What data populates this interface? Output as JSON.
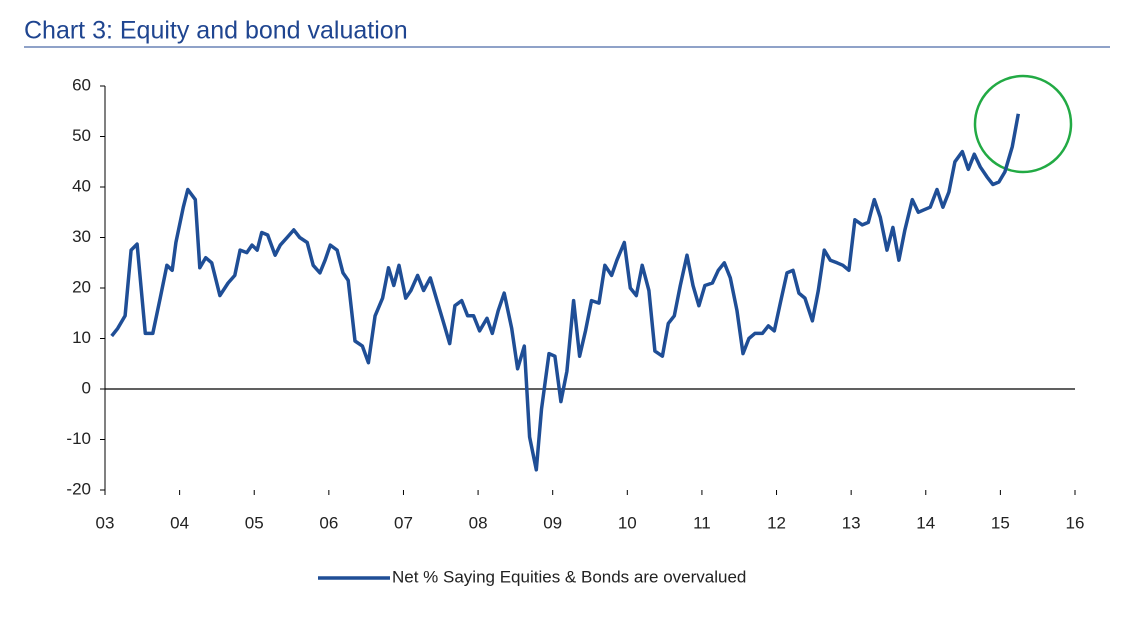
{
  "chart_data": {
    "type": "line",
    "title": "Chart 3: Equity and bond valuation",
    "x": [
      3.09,
      3.17,
      3.27,
      3.35,
      3.43,
      3.54,
      3.64,
      3.74,
      3.83,
      3.9,
      3.95,
      4.05,
      4.11,
      4.21,
      4.27,
      4.35,
      4.43,
      4.54,
      4.65,
      4.74,
      4.81,
      4.9,
      4.97,
      5.04,
      5.1,
      5.18,
      5.28,
      5.35,
      5.44,
      5.53,
      5.61,
      5.71,
      5.79,
      5.88,
      5.95,
      6.02,
      6.11,
      6.19,
      6.26,
      6.35,
      6.45,
      6.53,
      6.62,
      6.72,
      6.8,
      6.87,
      6.94,
      7.03,
      7.1,
      7.19,
      7.27,
      7.36,
      7.45,
      7.53,
      7.62,
      7.69,
      7.78,
      7.86,
      7.94,
      8.02,
      8.12,
      8.19,
      8.27,
      8.35,
      8.45,
      8.53,
      8.62,
      8.69,
      8.78,
      8.85,
      8.95,
      9.03,
      9.11,
      9.19,
      9.28,
      9.36,
      9.44,
      9.52,
      9.62,
      9.7,
      9.79,
      9.86,
      9.96,
      10.04,
      10.12,
      10.2,
      10.29,
      10.37,
      10.47,
      10.55,
      10.63,
      10.71,
      10.8,
      10.88,
      10.96,
      11.04,
      11.14,
      11.22,
      11.3,
      11.38,
      11.47,
      11.55,
      11.63,
      11.71,
      11.81,
      11.89,
      11.97,
      12.05,
      12.14,
      12.22,
      12.3,
      12.38,
      12.48,
      12.56,
      12.64,
      12.72,
      12.81,
      12.89,
      12.97,
      13.05,
      13.15,
      13.23,
      13.31,
      13.39,
      13.48,
      13.56,
      13.64,
      13.72,
      13.82,
      13.9,
      13.98,
      14.06,
      14.15,
      14.23,
      14.31,
      14.39,
      14.49,
      14.57,
      14.65,
      14.73,
      14.82,
      14.9,
      14.98,
      15.06,
      15.16,
      15.24
    ],
    "series": [
      {
        "name": "Net % Saying Equities & Bonds are overvalued",
        "color": "#1f4e96",
        "values": [
          10.5,
          12,
          14.5,
          27.5,
          28.7,
          11,
          11,
          18,
          24.5,
          23.5,
          29,
          36,
          39.5,
          37.5,
          24,
          26,
          25,
          18.5,
          21,
          22.5,
          27.5,
          27,
          28.5,
          27.5,
          31,
          30.5,
          26.5,
          28.5,
          30,
          31.5,
          30,
          29,
          24.5,
          23,
          25.5,
          28.5,
          27.5,
          23,
          21.5,
          9.5,
          8.5,
          5.2,
          14.5,
          18,
          24,
          20.5,
          24.5,
          18,
          19.5,
          22.5,
          19.5,
          22,
          17.5,
          13.5,
          9,
          16.5,
          17.5,
          14.5,
          14.5,
          11.5,
          14,
          11,
          15.5,
          19,
          12,
          4,
          8.5,
          -9.5,
          -16,
          -4,
          7,
          6.5,
          -2.5,
          3.5,
          17.5,
          6.5,
          11.5,
          17.5,
          17,
          24.5,
          22.5,
          25.5,
          29,
          20,
          18.5,
          24.5,
          19.5,
          7.5,
          6.5,
          13,
          14.5,
          20.5,
          26.5,
          20.5,
          16.5,
          20.5,
          21,
          23.5,
          25,
          22,
          15.5,
          7,
          10,
          11,
          11,
          12.5,
          11.5,
          17,
          23,
          23.5,
          19,
          18,
          13.5,
          19.5,
          27.5,
          25.5,
          25,
          24.5,
          23.5,
          33.5,
          32.5,
          33,
          37.5,
          34,
          27.5,
          32,
          25.5,
          31.5,
          37.5,
          35,
          35.5,
          36,
          39.5,
          36,
          39,
          45,
          47,
          43.5,
          46.5,
          44,
          42,
          40.5,
          41,
          43,
          48,
          54.5
        ]
      }
    ],
    "xlim": [
      3,
      16
    ],
    "xticks": [
      {
        "value": 3,
        "label": "03"
      },
      {
        "value": 4,
        "label": "04"
      },
      {
        "value": 5,
        "label": "05"
      },
      {
        "value": 6,
        "label": "06"
      },
      {
        "value": 7,
        "label": "07"
      },
      {
        "value": 8,
        "label": "08"
      },
      {
        "value": 9,
        "label": "09"
      },
      {
        "value": 10,
        "label": "10"
      },
      {
        "value": 11,
        "label": "11"
      },
      {
        "value": 12,
        "label": "12"
      },
      {
        "value": 13,
        "label": "13"
      },
      {
        "value": 14,
        "label": "14"
      },
      {
        "value": 15,
        "label": "15"
      },
      {
        "value": 16,
        "label": "16"
      }
    ],
    "ylim": [
      -20,
      60
    ],
    "yticks": [
      -20,
      -10,
      0,
      10,
      20,
      30,
      40,
      50,
      60
    ],
    "legend": "bottom"
  }
}
